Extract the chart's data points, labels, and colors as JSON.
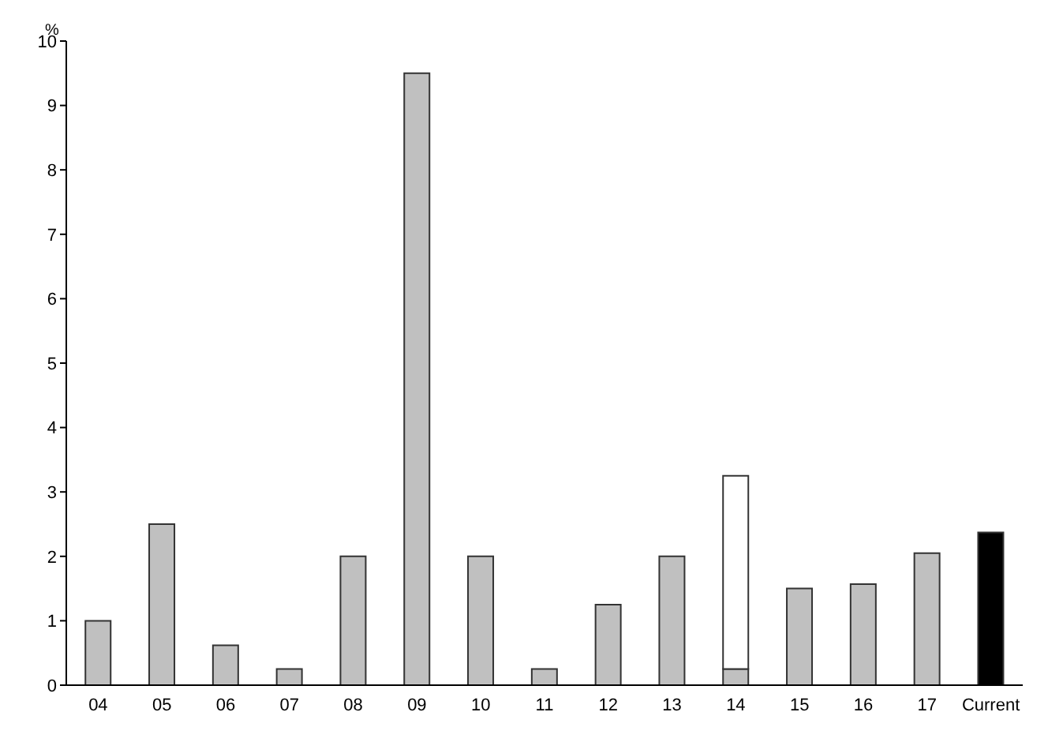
{
  "chart_data": {
    "type": "bar",
    "ylabel": "%",
    "categories": [
      "04",
      "05",
      "06",
      "07",
      "08",
      "09",
      "10",
      "11",
      "12",
      "13",
      "14",
      "15",
      "16",
      "17",
      "Current"
    ],
    "stacked": true,
    "series": [
      {
        "colors": [
          "#c0c0c0",
          "#c0c0c0",
          "#c0c0c0",
          "#c0c0c0",
          "#c0c0c0",
          "#c0c0c0",
          "#c0c0c0",
          "#c0c0c0",
          "#c0c0c0",
          "#c0c0c0",
          "#c0c0c0",
          "#c0c0c0",
          "#c0c0c0",
          "#c0c0c0",
          "#000000"
        ],
        "values": [
          1,
          2.5,
          0.62,
          0.25,
          2,
          9.5,
          2,
          0.25,
          1.25,
          2,
          0.25,
          1.5,
          1.57,
          2.05,
          2.37
        ]
      },
      {
        "color": "#ffffff",
        "values": [
          null,
          null,
          null,
          null,
          null,
          null,
          null,
          null,
          null,
          null,
          3,
          null,
          null,
          null,
          null
        ]
      }
    ],
    "ylim": [
      0,
      10
    ],
    "yticks": [
      0,
      1,
      2,
      3,
      4,
      5,
      6,
      7,
      8,
      9,
      10
    ],
    "grid": false,
    "legend": false
  }
}
